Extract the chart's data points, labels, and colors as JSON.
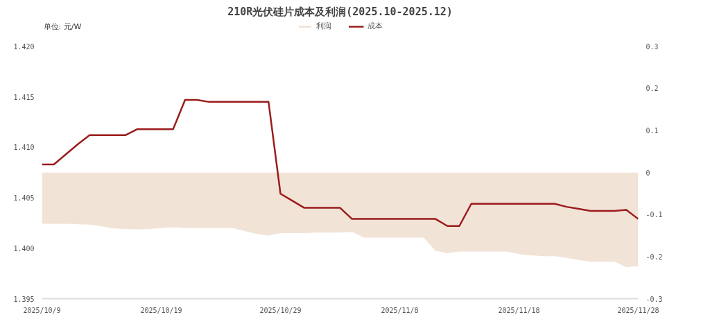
{
  "chart_data": {
    "type": "line",
    "title": "210R光伏硅片成本及利润(2025.10-2025.12)",
    "annotations": [
      "单位: 元/W"
    ],
    "x": [
      "2025-10-09",
      "2025-10-10",
      "2025-10-11",
      "2025-10-12",
      "2025-10-13",
      "2025-10-14",
      "2025-10-15",
      "2025-10-16",
      "2025-10-17",
      "2025-10-18",
      "2025-10-19",
      "2025-10-20",
      "2025-10-21",
      "2025-10-22",
      "2025-10-23",
      "2025-10-24",
      "2025-10-25",
      "2025-10-26",
      "2025-10-27",
      "2025-10-28",
      "2025-10-29",
      "2025-10-30",
      "2025-10-31",
      "2025-11-01",
      "2025-11-02",
      "2025-11-03",
      "2025-11-04",
      "2025-11-05",
      "2025-11-06",
      "2025-11-07",
      "2025-11-08",
      "2025-11-09",
      "2025-11-10",
      "2025-11-11",
      "2025-11-12",
      "2025-11-13",
      "2025-11-14",
      "2025-11-15",
      "2025-11-16",
      "2025-11-17",
      "2025-11-18",
      "2025-11-19",
      "2025-11-20",
      "2025-11-21",
      "2025-11-22",
      "2025-11-23",
      "2025-11-24",
      "2025-11-25",
      "2025-11-26",
      "2025-11-27",
      "2025-11-28"
    ],
    "series": [
      {
        "name": "利润",
        "type": "area",
        "axis": "y2",
        "color": "#f2e3d7",
        "values": [
          -0.122,
          -0.122,
          -0.122,
          -0.123,
          -0.124,
          -0.128,
          -0.133,
          -0.134,
          -0.135,
          -0.134,
          -0.132,
          -0.13,
          -0.132,
          -0.132,
          -0.132,
          -0.132,
          -0.132,
          -0.139,
          -0.146,
          -0.15,
          -0.144,
          -0.144,
          -0.144,
          -0.143,
          -0.143,
          -0.143,
          -0.141,
          -0.155,
          -0.155,
          -0.155,
          -0.155,
          -0.155,
          -0.155,
          -0.186,
          -0.192,
          -0.188,
          -0.188,
          -0.188,
          -0.188,
          -0.188,
          -0.194,
          -0.197,
          -0.199,
          -0.199,
          -0.203,
          -0.208,
          -0.212,
          -0.212,
          -0.212,
          -0.225,
          -0.223
        ]
      },
      {
        "name": "成本",
        "type": "line",
        "axis": "y",
        "color": "#9b1c1c",
        "values": [
          1.4083,
          1.4083,
          1.4093,
          1.4103,
          1.4112,
          1.4112,
          1.4112,
          1.4112,
          1.4118,
          1.4118,
          1.4118,
          1.4118,
          1.4147,
          1.4147,
          1.4145,
          1.4145,
          1.4145,
          1.4145,
          1.4145,
          1.4145,
          1.4054,
          1.4047,
          1.404,
          1.404,
          1.404,
          1.404,
          1.4029,
          1.4029,
          1.4029,
          1.4029,
          1.4029,
          1.4029,
          1.4029,
          1.4029,
          1.4022,
          1.4022,
          1.4044,
          1.4044,
          1.4044,
          1.4044,
          1.4044,
          1.4044,
          1.4044,
          1.4044,
          1.4041,
          1.4039,
          1.4037,
          1.4037,
          1.4037,
          1.4038,
          1.4029
        ]
      }
    ],
    "xlim": [
      "2025-10-09",
      "2025-11-28"
    ],
    "xticks": [
      {
        "value": "2025-10-09",
        "label": "2025/10/9"
      },
      {
        "value": "2025-10-19",
        "label": "2025/10/19"
      },
      {
        "value": "2025-10-29",
        "label": "2025/10/29"
      },
      {
        "value": "2025-11-08",
        "label": "2025/11/8"
      },
      {
        "value": "2025-11-18",
        "label": "2025/11/18"
      },
      {
        "value": "2025-11-28",
        "label": "2025/11/28"
      }
    ],
    "ylim": [
      1.395,
      1.42
    ],
    "yticks": [
      {
        "value": 1.395,
        "label": "1.395"
      },
      {
        "value": 1.4,
        "label": "1.400"
      },
      {
        "value": 1.405,
        "label": "1.405"
      },
      {
        "value": 1.41,
        "label": "1.410"
      },
      {
        "value": 1.415,
        "label": "1.415"
      },
      {
        "value": 1.42,
        "label": "1.420"
      }
    ],
    "y2lim": [
      -0.3,
      0.3
    ],
    "y2ticks": [
      -0.3,
      -0.2,
      -0.1,
      0,
      0.1,
      0.2,
      0.3
    ],
    "legend": "top",
    "grid": false,
    "line_style": "solid",
    "marker": "none"
  }
}
